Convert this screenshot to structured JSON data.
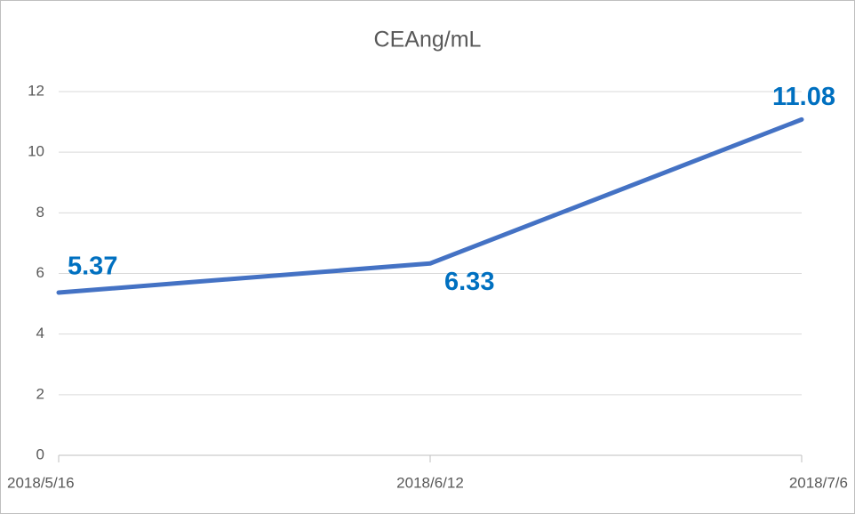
{
  "chart_data": {
    "type": "line",
    "title": "CEAng/mL",
    "categories": [
      "2018/5/16",
      "2018/6/12",
      "2018/7/6"
    ],
    "values": [
      5.37,
      6.33,
      11.08
    ],
    "color": "#4472c4",
    "label_color": "#0070c0",
    "ylim": [
      0,
      12
    ],
    "yticks": [
      0,
      2,
      4,
      6,
      8,
      10,
      12
    ],
    "grid": true
  }
}
